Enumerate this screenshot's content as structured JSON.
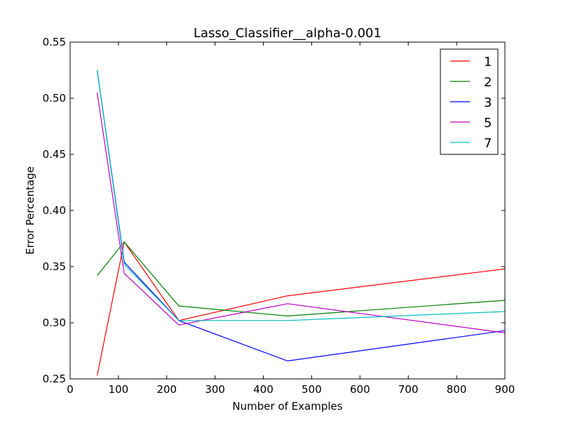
{
  "chart_data": {
    "type": "line",
    "title": "Lasso_Classifier__alpha-0.001",
    "xlabel": "Number of Examples",
    "ylabel": "Error Percentage",
    "xlim": [
      0,
      900
    ],
    "ylim": [
      0.25,
      0.55
    ],
    "xticks": [
      0,
      100,
      200,
      300,
      400,
      500,
      600,
      700,
      800,
      900
    ],
    "yticks": [
      0.25,
      0.3,
      0.35,
      0.4,
      0.45,
      0.5,
      0.55
    ],
    "xtick_labels": [
      "0",
      "100",
      "200",
      "300",
      "400",
      "500",
      "600",
      "700",
      "800",
      "900"
    ],
    "ytick_labels": [
      "0.25",
      "0.30",
      "0.35",
      "0.40",
      "0.45",
      "0.50",
      "0.55"
    ],
    "grid": false,
    "legend_position": "top-right",
    "x": [
      56,
      112,
      225,
      450,
      900
    ],
    "series": [
      {
        "name": "1",
        "color": "#ff0000",
        "values": [
          0.253,
          0.372,
          0.302,
          0.324,
          0.348
        ]
      },
      {
        "name": "2",
        "color": "#008000",
        "values": [
          0.342,
          0.372,
          0.315,
          0.306,
          0.32
        ]
      },
      {
        "name": "3",
        "color": "#0000ff",
        "values": [
          0.525,
          0.354,
          0.302,
          0.266,
          0.293
        ]
      },
      {
        "name": "5",
        "color": "#bf00bf",
        "values": [
          0.505,
          0.344,
          0.298,
          0.317,
          0.291
        ]
      },
      {
        "name": "7",
        "color": "#00bfbf",
        "values": [
          0.525,
          0.352,
          0.302,
          0.302,
          0.31
        ]
      }
    ]
  }
}
